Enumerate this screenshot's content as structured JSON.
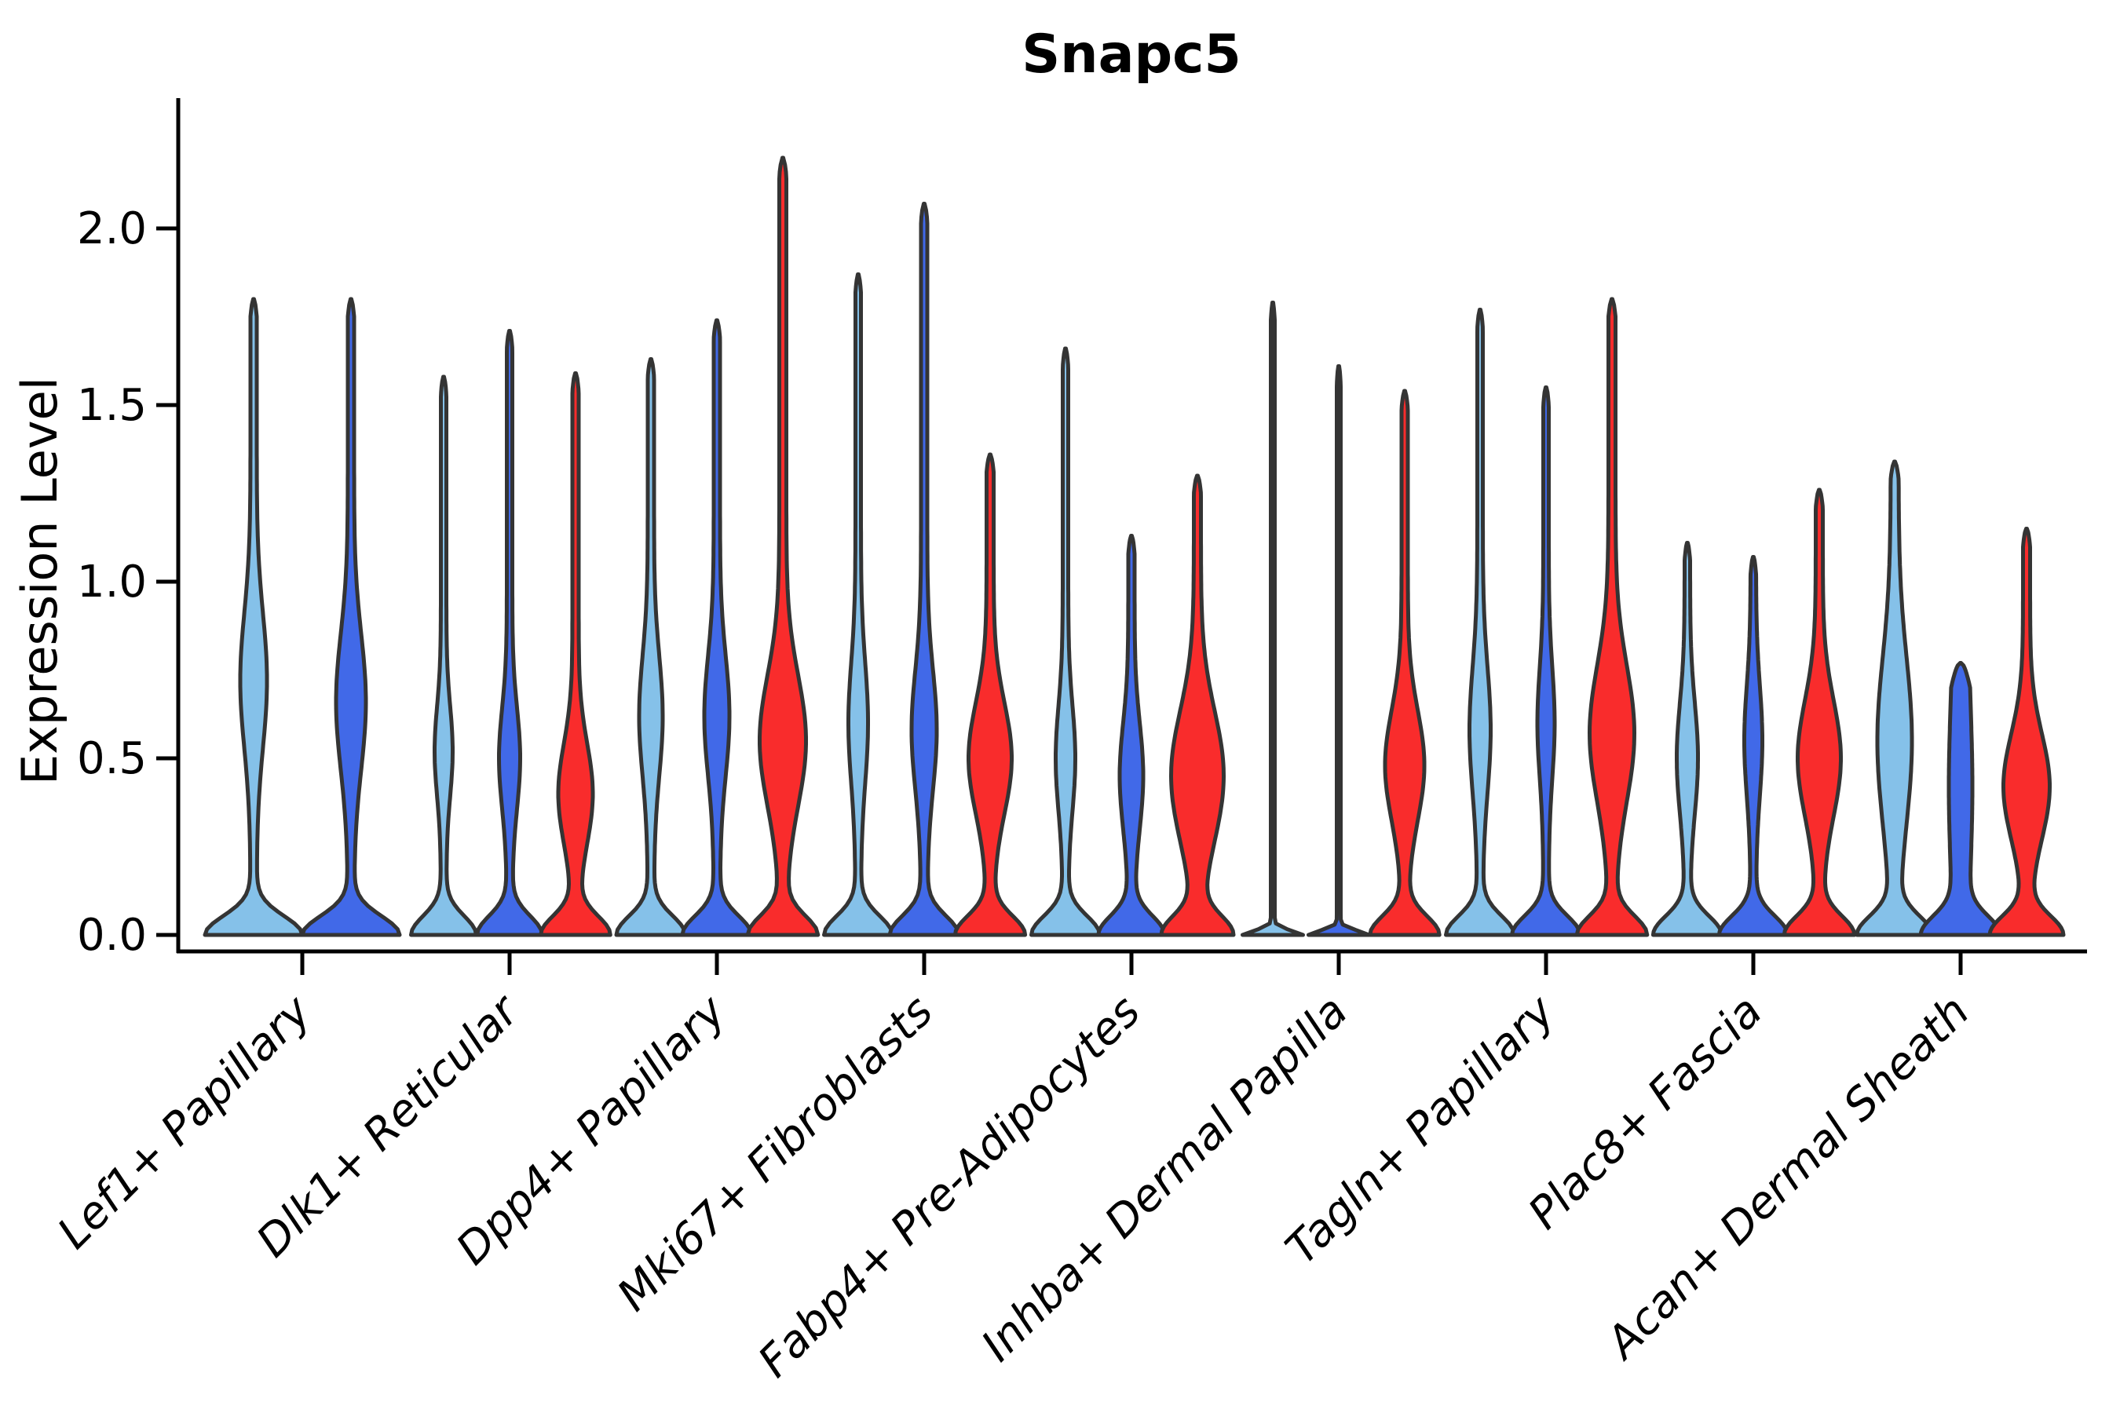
{
  "chart_data": {
    "type": "violin",
    "title": "Snapc5",
    "ylabel": "Expression Level",
    "xlabel": "",
    "ylim": [
      -0.05,
      2.35
    ],
    "yticks": [
      0.0,
      0.5,
      1.0,
      1.5,
      2.0
    ],
    "ytick_labels": [
      "0.0",
      "0.5",
      "1.0",
      "1.5",
      "2.0"
    ],
    "grid": false,
    "legend": "none",
    "label_rotation_deg": 45,
    "colors": {
      "light_blue": "#85C1E9",
      "dark_blue": "#4169E8",
      "red": "#F92C2C",
      "outline": "#343434",
      "text": "#000000",
      "background": "#ffffff"
    },
    "categories": [
      "Lef1+ Papillary",
      "Dlk1+ Reticular",
      "Dpp4+ Papillary",
      "Mki67+ Fibroblasts",
      "Fabp4+ Pre-Adipocytes",
      "Inhba+ Dermal Papilla",
      "Tagln+ Papillary",
      "Plac8+ Fascia",
      "Acan+ Dermal Sheath"
    ],
    "groups": [
      {
        "category": "Lef1+ Papillary",
        "violins": [
          {
            "hue": "light_blue",
            "max_expression": 1.8,
            "density_bulge_center": 0.72,
            "bulge_halfwidth": 13,
            "bulge_spread": 0.27,
            "base_halfwidth": 58,
            "stem_halfwidth": 4
          },
          {
            "hue": "dark_blue",
            "max_expression": 1.8,
            "density_bulge_center": 0.66,
            "bulge_halfwidth": 15,
            "bulge_spread": 0.27,
            "base_halfwidth": 58,
            "stem_halfwidth": 4
          }
        ]
      },
      {
        "category": "Dlk1+ Reticular",
        "violins": [
          {
            "hue": "light_blue",
            "max_expression": 1.58,
            "density_bulge_center": 0.52,
            "bulge_halfwidth": 8,
            "bulge_spread": 0.18,
            "base_halfwidth": 38,
            "stem_halfwidth": 3.5
          },
          {
            "hue": "dark_blue",
            "max_expression": 1.71,
            "density_bulge_center": 0.5,
            "bulge_halfwidth": 10,
            "bulge_spread": 0.2,
            "base_halfwidth": 38,
            "stem_halfwidth": 3.5
          },
          {
            "hue": "red",
            "max_expression": 1.59,
            "density_bulge_center": 0.4,
            "bulge_halfwidth": 18,
            "bulge_spread": 0.2,
            "base_halfwidth": 40,
            "stem_halfwidth": 4
          }
        ]
      },
      {
        "category": "Dpp4+ Papillary",
        "violins": [
          {
            "hue": "light_blue",
            "max_expression": 1.63,
            "density_bulge_center": 0.62,
            "bulge_halfwidth": 11,
            "bulge_spread": 0.24,
            "base_halfwidth": 40,
            "stem_halfwidth": 4
          },
          {
            "hue": "dark_blue",
            "max_expression": 1.74,
            "density_bulge_center": 0.62,
            "bulge_halfwidth": 12,
            "bulge_spread": 0.24,
            "base_halfwidth": 40,
            "stem_halfwidth": 4
          },
          {
            "hue": "red",
            "max_expression": 2.2,
            "density_bulge_center": 0.55,
            "bulge_halfwidth": 25,
            "bulge_spread": 0.26,
            "base_halfwidth": 40,
            "stem_halfwidth": 4.5
          }
        ]
      },
      {
        "category": "Mki67+ Fibroblasts",
        "violins": [
          {
            "hue": "light_blue",
            "max_expression": 1.87,
            "density_bulge_center": 0.6,
            "bulge_halfwidth": 9,
            "bulge_spread": 0.24,
            "base_halfwidth": 40,
            "stem_halfwidth": 3.5
          },
          {
            "hue": "dark_blue",
            "max_expression": 2.07,
            "density_bulge_center": 0.58,
            "bulge_halfwidth": 12,
            "bulge_spread": 0.24,
            "base_halfwidth": 40,
            "stem_halfwidth": 4
          },
          {
            "hue": "red",
            "max_expression": 1.36,
            "density_bulge_center": 0.5,
            "bulge_halfwidth": 23,
            "bulge_spread": 0.22,
            "base_halfwidth": 40,
            "stem_halfwidth": 4.5
          }
        ]
      },
      {
        "category": "Fabp4+ Pre-Adipocytes",
        "violins": [
          {
            "hue": "light_blue",
            "max_expression": 1.66,
            "density_bulge_center": 0.5,
            "bulge_halfwidth": 9,
            "bulge_spread": 0.21,
            "base_halfwidth": 40,
            "stem_halfwidth": 3.5
          },
          {
            "hue": "dark_blue",
            "max_expression": 1.13,
            "density_bulge_center": 0.45,
            "bulge_halfwidth": 11,
            "bulge_spread": 0.21,
            "base_halfwidth": 38,
            "stem_halfwidth": 4
          },
          {
            "hue": "red",
            "max_expression": 1.3,
            "density_bulge_center": 0.45,
            "bulge_halfwidth": 29,
            "bulge_spread": 0.26,
            "base_halfwidth": 40,
            "stem_halfwidth": 4.5
          }
        ]
      },
      {
        "category": "Inhba+ Dermal Papilla",
        "violins": [
          {
            "hue": "light_blue",
            "max_expression": 1.79,
            "density_bulge_center": 0,
            "bulge_halfwidth": 0,
            "bulge_spread": 0.2,
            "base_halfwidth": 36,
            "stem_halfwidth": 2.5,
            "thin": true
          },
          {
            "hue": "dark_blue",
            "max_expression": 1.61,
            "density_bulge_center": 0,
            "bulge_halfwidth": 0,
            "bulge_spread": 0.2,
            "base_halfwidth": 36,
            "stem_halfwidth": 2.5,
            "thin": true
          },
          {
            "hue": "red",
            "max_expression": 1.54,
            "density_bulge_center": 0.48,
            "bulge_halfwidth": 21,
            "bulge_spread": 0.22,
            "base_halfwidth": 40,
            "stem_halfwidth": 4
          }
        ]
      },
      {
        "category": "Tagln+ Papillary",
        "violins": [
          {
            "hue": "light_blue",
            "max_expression": 1.77,
            "density_bulge_center": 0.58,
            "bulge_halfwidth": 10,
            "bulge_spread": 0.25,
            "base_halfwidth": 40,
            "stem_halfwidth": 3.5
          },
          {
            "hue": "dark_blue",
            "max_expression": 1.55,
            "density_bulge_center": 0.6,
            "bulge_halfwidth": 7.5,
            "bulge_spread": 0.22,
            "base_halfwidth": 40,
            "stem_halfwidth": 3.5
          },
          {
            "hue": "red",
            "max_expression": 1.8,
            "density_bulge_center": 0.57,
            "bulge_halfwidth": 24,
            "bulge_spread": 0.27,
            "base_halfwidth": 40,
            "stem_halfwidth": 4.5
          }
        ]
      },
      {
        "category": "Plac8+ Fascia",
        "violins": [
          {
            "hue": "light_blue",
            "max_expression": 1.11,
            "density_bulge_center": 0.5,
            "bulge_halfwidth": 10,
            "bulge_spread": 0.22,
            "base_halfwidth": 40,
            "stem_halfwidth": 3.5
          },
          {
            "hue": "dark_blue",
            "max_expression": 1.07,
            "density_bulge_center": 0.55,
            "bulge_halfwidth": 8,
            "bulge_spread": 0.22,
            "base_halfwidth": 40,
            "stem_halfwidth": 3.5
          },
          {
            "hue": "red",
            "max_expression": 1.26,
            "density_bulge_center": 0.5,
            "bulge_halfwidth": 23,
            "bulge_spread": 0.23,
            "base_halfwidth": 40,
            "stem_halfwidth": 4.5
          }
        ]
      },
      {
        "category": "Acan+ Dermal Sheath",
        "violins": [
          {
            "hue": "light_blue",
            "max_expression": 1.34,
            "density_bulge_center": 0.55,
            "bulge_halfwidth": 17,
            "bulge_spread": 0.33,
            "base_halfwidth": 42,
            "stem_halfwidth": 5
          },
          {
            "hue": "dark_blue",
            "max_expression": 0.77,
            "density_bulge_center": 0.42,
            "bulge_halfwidth": 5,
            "bulge_spread": 0.3,
            "base_halfwidth": 40,
            "stem_halfwidth": 10,
            "blunt": true
          },
          {
            "hue": "red",
            "max_expression": 1.15,
            "density_bulge_center": 0.42,
            "bulge_halfwidth": 25,
            "bulge_spread": 0.21,
            "base_halfwidth": 42,
            "stem_halfwidth": 4.5
          }
        ]
      }
    ]
  }
}
